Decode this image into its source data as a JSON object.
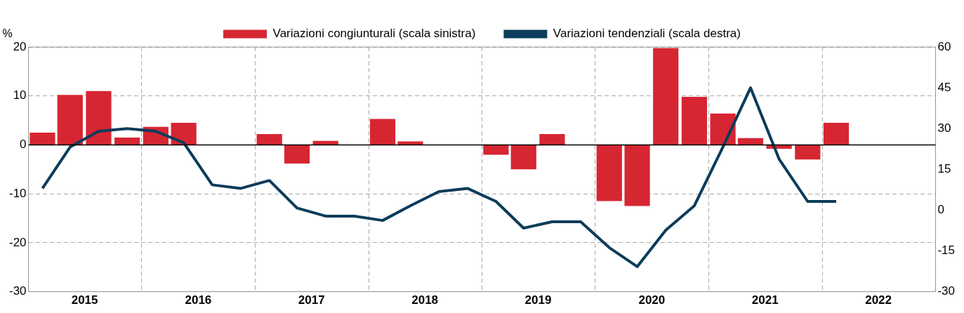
{
  "chart_data": {
    "type": "bar",
    "ylabel": "%",
    "x": [
      "2015-02-15",
      "2015-05-15",
      "2015-08-15",
      "2015-11-15",
      "2016-02-15",
      "2016-05-15",
      "2016-08-15",
      "2016-11-15",
      "2017-02-15",
      "2017-05-15",
      "2017-08-15",
      "2017-11-15",
      "2018-02-15",
      "2018-05-15",
      "2018-08-15",
      "2018-11-15",
      "2019-02-15",
      "2019-05-15",
      "2019-08-15",
      "2019-11-15",
      "2020-02-15",
      "2020-05-15",
      "2020-08-15",
      "2020-11-15",
      "2021-02-15",
      "2021-05-15",
      "2021-08-15",
      "2021-11-15",
      "2022-02-15"
    ],
    "series": [
      {
        "name": "Variazioni congiunturali (scala sinistra)",
        "type": "bar",
        "color": "#d62632",
        "values": [
          2.5,
          10.2,
          11,
          1.5,
          3.7,
          4.5,
          0,
          0,
          2.2,
          -3.8,
          0.8,
          0,
          5.3,
          0.7,
          0,
          0,
          -2,
          -5,
          2.2,
          0,
          -11.5,
          -12.5,
          19.8,
          9.8,
          6.4,
          1.4,
          -0.8,
          -3,
          4.5
        ]
      },
      {
        "name": "Variazioni tendenziali (scala destra)",
        "type": "line",
        "axis": "y2",
        "color": "#0c3c5a",
        "values": [
          8,
          23.2,
          29,
          30,
          29,
          24.8,
          9.3,
          8,
          10.9,
          0.8,
          -2.2,
          -2.2,
          -3.8,
          1.6,
          6.8,
          8,
          3.2,
          -6.6,
          -4.3,
          -4.3,
          -13.8,
          -20.8,
          -7.4,
          1.6,
          23.2,
          45,
          18.8,
          3.2,
          3.2
        ]
      }
    ],
    "xlim": [
      "2015-01-01",
      "2023-01-01"
    ],
    "xticks": [
      {
        "value": "2015-07-01",
        "label": "2015"
      },
      {
        "value": "2016-01-01",
        "label": null
      },
      {
        "value": "2016-07-01",
        "label": "2016"
      },
      {
        "value": "2017-01-01",
        "label": null
      },
      {
        "value": "2017-07-01",
        "label": "2017"
      },
      {
        "value": "2018-01-01",
        "label": null
      },
      {
        "value": "2018-07-01",
        "label": "2018"
      },
      {
        "value": "2019-01-01",
        "label": null
      },
      {
        "value": "2019-07-01",
        "label": "2019"
      },
      {
        "value": "2020-01-01",
        "label": null
      },
      {
        "value": "2020-07-01",
        "label": "2020"
      },
      {
        "value": "2021-01-01",
        "label": null
      },
      {
        "value": "2021-07-01",
        "label": "2021"
      },
      {
        "value": "2022-01-01",
        "label": null
      },
      {
        "value": "2022-07-01",
        "label": "2022"
      }
    ],
    "ylim": [
      -30,
      20
    ],
    "yticks": [
      -30,
      -20,
      -10,
      0,
      10,
      20
    ],
    "y2lim": [
      -30,
      60
    ],
    "y2ticks": [
      -30,
      -15,
      0,
      15,
      30,
      45,
      60
    ],
    "grid": true,
    "legend": "top",
    "marker": "none",
    "line_style": "solid"
  }
}
